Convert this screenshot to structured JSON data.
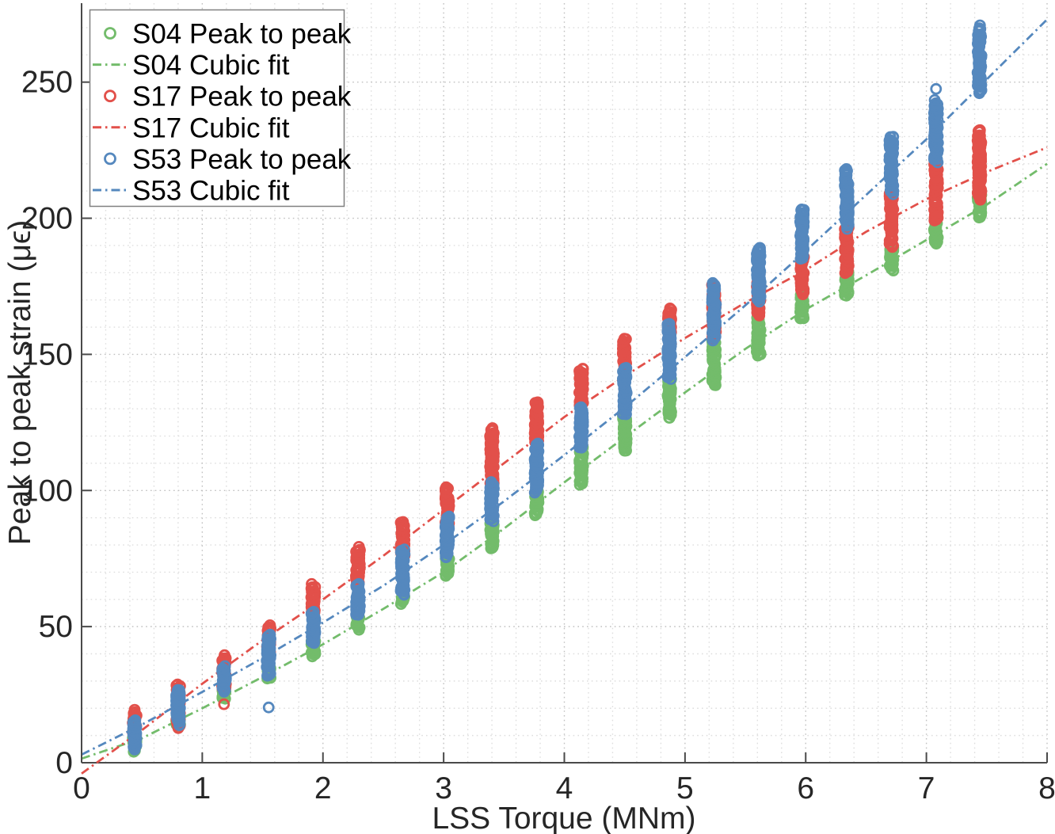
{
  "figure": {
    "background": "#ffffff"
  },
  "chart_data": {
    "type": "scatter",
    "title": "",
    "xlabel": "LSS Torque (MNm)",
    "ylabel": "Peak to peak strain (μϵ)",
    "xlim": [
      0,
      8
    ],
    "ylim": [
      0,
      279
    ],
    "xticks": [
      0,
      1,
      2,
      3,
      4,
      5,
      6,
      7,
      8
    ],
    "yticks": [
      0,
      50,
      100,
      150,
      200,
      250
    ],
    "x_minor_step": 0.2,
    "y_minor_step": 10,
    "grid": {
      "major": true,
      "minor": true,
      "style": "dotted",
      "major_color": "#c0c0c0",
      "minor_color": "#dedede"
    },
    "axis_color": "#4a4a4a",
    "text_color": "#262626",
    "legend": {
      "position": "northwest",
      "border_color": "#808080",
      "background": "#ffffff"
    },
    "series": [
      {
        "name": "S04 Peak to peak",
        "slug": "s04-peak-to-peak",
        "kind": "scatter",
        "color": "#73bc6b",
        "clusters": [
          [
            0.44,
            4.5,
            9
          ],
          [
            0.8,
            13,
            17
          ],
          [
            1.18,
            23.3,
            27.6
          ],
          [
            1.55,
            30.8,
            34.9
          ],
          [
            1.92,
            39,
            45
          ],
          [
            2.29,
            49.4,
            54
          ],
          [
            2.66,
            58.5,
            62.5
          ],
          [
            3.03,
            68.6,
            75.6
          ],
          [
            3.4,
            78.8,
            89
          ],
          [
            3.77,
            91,
            99.7
          ],
          [
            4.14,
            102.6,
            115.7
          ],
          [
            4.5,
            114.2,
            127.9
          ],
          [
            4.87,
            126.7,
            141.3
          ],
          [
            5.24,
            138.4,
            155
          ],
          [
            5.61,
            150,
            164.2
          ],
          [
            5.97,
            162.8,
            172.4
          ],
          [
            6.34,
            171.5,
            180.2
          ],
          [
            6.71,
            181.1,
            189.8
          ],
          [
            7.08,
            190.5,
            199.5
          ],
          [
            7.44,
            200,
            211
          ]
        ],
        "outliers": []
      },
      {
        "name": "S04 Cubic fit",
        "slug": "s04-cubic-fit",
        "kind": "line",
        "color": "#73bc6b",
        "style": "dash-dot",
        "points": [
          [
            0,
            1.5
          ],
          [
            0.5,
            9
          ],
          [
            1,
            20
          ],
          [
            1.5,
            31.5
          ],
          [
            2,
            43.5
          ],
          [
            2.5,
            56.5
          ],
          [
            3,
            70
          ],
          [
            3.5,
            86
          ],
          [
            4,
            103
          ],
          [
            4.5,
            119.5
          ],
          [
            5,
            136
          ],
          [
            5.5,
            152
          ],
          [
            6,
            166.5
          ],
          [
            6.5,
            179
          ],
          [
            7,
            192
          ],
          [
            7.5,
            205
          ],
          [
            8,
            220
          ]
        ]
      },
      {
        "name": "S17 Peak to peak",
        "slug": "s17-peak-to-peak",
        "kind": "scatter",
        "color": "#e2504a",
        "clusters": [
          [
            0.44,
            11,
            18.9
          ],
          [
            0.8,
            13,
            28.5
          ],
          [
            1.18,
            27,
            39.2
          ],
          [
            1.55,
            40,
            50.3
          ],
          [
            1.92,
            55.2,
            65.4
          ],
          [
            2.29,
            65.7,
            78.8
          ],
          [
            2.66,
            75,
            88.7
          ],
          [
            3.03,
            87,
            101
          ],
          [
            3.4,
            102.6,
            122.4
          ],
          [
            3.77,
            117.2,
            132.3
          ],
          [
            4.14,
            131.1,
            144.8
          ],
          [
            4.5,
            145.3,
            155.8
          ],
          [
            4.87,
            157.8,
            166.6
          ],
          [
            5.24,
            156,
            175.3
          ],
          [
            5.61,
            164.2,
            176
          ],
          [
            5.97,
            172.4,
            186
          ],
          [
            6.34,
            180.2,
            196.5
          ],
          [
            6.71,
            189.8,
            209.5
          ],
          [
            7.08,
            199,
            221
          ],
          [
            7.44,
            207,
            232.5
          ]
        ],
        "outliers": [
          [
            1.18,
            21.5
          ]
        ]
      },
      {
        "name": "S17 Cubic fit",
        "slug": "s17-cubic-fit",
        "kind": "line",
        "color": "#e2504a",
        "style": "dash-dot",
        "points": [
          [
            0,
            -4
          ],
          [
            0.5,
            12
          ],
          [
            1,
            29
          ],
          [
            1.5,
            45
          ],
          [
            2,
            60
          ],
          [
            2.5,
            76
          ],
          [
            3,
            93
          ],
          [
            3.5,
            110
          ],
          [
            4,
            127
          ],
          [
            4.5,
            142
          ],
          [
            5,
            156
          ],
          [
            5.5,
            169
          ],
          [
            6,
            181
          ],
          [
            6.5,
            195
          ],
          [
            7,
            207
          ],
          [
            7.5,
            217
          ],
          [
            8,
            226
          ]
        ]
      },
      {
        "name": "S53 Peak to peak",
        "slug": "s53-peak-to-peak",
        "kind": "scatter",
        "color": "#5588be",
        "clusters": [
          [
            0.44,
            5,
            15.5
          ],
          [
            0.8,
            14,
            27
          ],
          [
            1.18,
            26.2,
            35.2
          ],
          [
            1.55,
            31.4,
            46.8
          ],
          [
            1.92,
            44,
            55.5
          ],
          [
            2.29,
            54,
            65.7
          ],
          [
            2.66,
            62,
            78
          ],
          [
            3.03,
            75.5,
            90.5
          ],
          [
            3.4,
            89,
            102.6
          ],
          [
            3.77,
            99.7,
            117.2
          ],
          [
            4.14,
            115.7,
            131.1
          ],
          [
            4.5,
            127.9,
            145.3
          ],
          [
            4.87,
            141.3,
            160.8
          ],
          [
            5.24,
            155,
            176
          ],
          [
            5.61,
            169.5,
            189.2
          ],
          [
            5.97,
            184.9,
            203.5
          ],
          [
            6.34,
            196.5,
            218
          ],
          [
            6.71,
            209.3,
            229.7
          ],
          [
            7.08,
            221,
            243
          ],
          [
            7.44,
            246.5,
            270.5
          ]
        ],
        "outliers": [
          [
            1.55,
            20.3
          ],
          [
            7.08,
            247.5
          ]
        ]
      },
      {
        "name": "S53 Cubic fit",
        "slug": "s53-cubic-fit",
        "kind": "line",
        "color": "#5588be",
        "style": "dash-dot",
        "points": [
          [
            0,
            3
          ],
          [
            0.5,
            14
          ],
          [
            1,
            26
          ],
          [
            1.5,
            38.5
          ],
          [
            2,
            51.5
          ],
          [
            2.5,
            65
          ],
          [
            3,
            80
          ],
          [
            3.5,
            96
          ],
          [
            4,
            113
          ],
          [
            4.5,
            130.5
          ],
          [
            5,
            149
          ],
          [
            5.5,
            168
          ],
          [
            6,
            188
          ],
          [
            6.5,
            208.5
          ],
          [
            7,
            229
          ],
          [
            7.5,
            251
          ],
          [
            8,
            273
          ]
        ]
      }
    ]
  }
}
